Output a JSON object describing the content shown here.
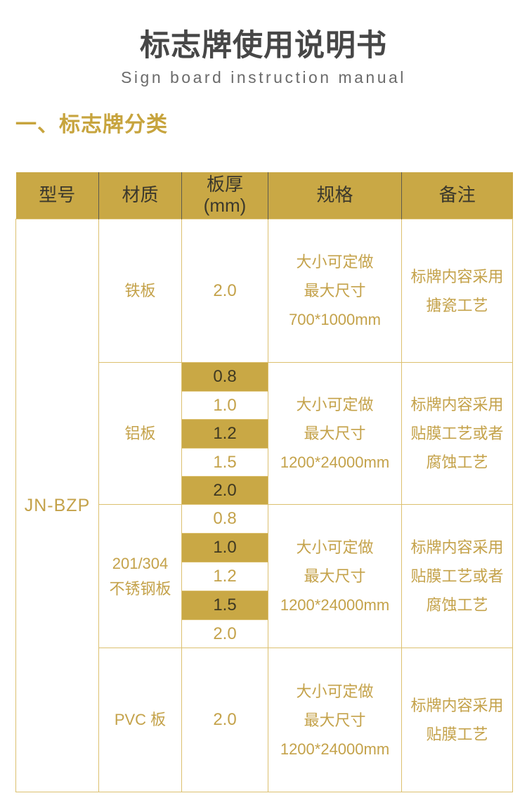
{
  "page": {
    "title": "标志牌使用说明书",
    "subtitle": "Sign board instruction manual",
    "section_heading": "一、标志牌分类"
  },
  "colors": {
    "accent_gold": "#C9A845",
    "gold_text": "#C4A24A",
    "border_tan": "#DCC06F",
    "dark_cell_text": "#3F3922",
    "header_text": "#3B382C",
    "title_text": "#474747",
    "subtitle_text": "#6B6B6B"
  },
  "table": {
    "headers": {
      "model": "型号",
      "material": "材质",
      "thickness_l1": "板厚",
      "thickness_l2": "(mm)",
      "spec": "规格",
      "note": "备注"
    },
    "model": "JN-BZP",
    "groups": [
      {
        "material": [
          "铁板"
        ],
        "thickness": [
          {
            "value": "2.0",
            "highlight": false
          }
        ],
        "spec": [
          "大小可定做",
          "最大尺寸",
          "700*1000mm"
        ],
        "note": [
          "标牌内容采用",
          "搪瓷工艺"
        ]
      },
      {
        "material": [
          "铝板"
        ],
        "thickness": [
          {
            "value": "0.8",
            "highlight": true
          },
          {
            "value": "1.0",
            "highlight": false
          },
          {
            "value": "1.2",
            "highlight": true
          },
          {
            "value": "1.5",
            "highlight": false
          },
          {
            "value": "2.0",
            "highlight": true
          }
        ],
        "spec": [
          "大小可定做",
          "最大尺寸",
          "1200*24000mm"
        ],
        "note": [
          "标牌内容采用",
          "贴膜工艺或者",
          "腐蚀工艺"
        ]
      },
      {
        "material": [
          "201/304",
          "不锈钢板"
        ],
        "thickness": [
          {
            "value": "0.8",
            "highlight": false
          },
          {
            "value": "1.0",
            "highlight": true
          },
          {
            "value": "1.2",
            "highlight": false
          },
          {
            "value": "1.5",
            "highlight": true
          },
          {
            "value": "2.0",
            "highlight": false
          }
        ],
        "spec": [
          "大小可定做",
          "最大尺寸",
          "1200*24000mm"
        ],
        "note": [
          "标牌内容采用",
          "贴膜工艺或者",
          "腐蚀工艺"
        ]
      },
      {
        "material": [
          "PVC 板"
        ],
        "thickness": [
          {
            "value": "2.0",
            "highlight": false
          }
        ],
        "spec": [
          "大小可定做",
          "最大尺寸",
          "1200*24000mm"
        ],
        "note": [
          "标牌内容采用",
          "贴膜工艺"
        ]
      }
    ]
  }
}
